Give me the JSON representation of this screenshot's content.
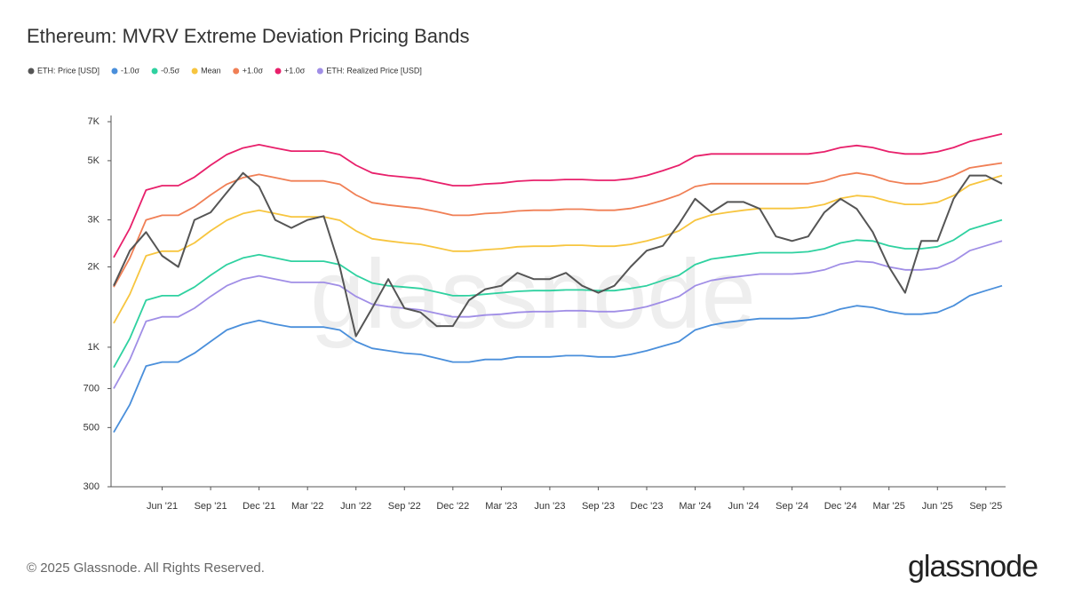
{
  "chart_data": {
    "type": "line",
    "title": "Ethereum: MVRV Extreme Deviation Pricing Bands",
    "watermark": "glassnode",
    "yscale": "log",
    "grid": false,
    "x": [
      "2021-03",
      "2021-04",
      "2021-05",
      "2021-06",
      "2021-07",
      "2021-08",
      "2021-09",
      "2021-10",
      "2021-11",
      "2021-12",
      "2022-01",
      "2022-02",
      "2022-03",
      "2022-04",
      "2022-05",
      "2022-06",
      "2022-07",
      "2022-08",
      "2022-09",
      "2022-10",
      "2022-11",
      "2022-12",
      "2023-01",
      "2023-02",
      "2023-03",
      "2023-04",
      "2023-05",
      "2023-06",
      "2023-07",
      "2023-08",
      "2023-09",
      "2023-10",
      "2023-11",
      "2023-12",
      "2024-01",
      "2024-02",
      "2024-03",
      "2024-04",
      "2024-05",
      "2024-06",
      "2024-07",
      "2024-08",
      "2024-09",
      "2024-10",
      "2024-11",
      "2024-12",
      "2025-01",
      "2025-02",
      "2025-03",
      "2025-04",
      "2025-05",
      "2025-06",
      "2025-07",
      "2025-08",
      "2025-09",
      "2025-10"
    ],
    "xticks": [
      {
        "value": "2021-06",
        "label": "Jun '21"
      },
      {
        "value": "2021-09",
        "label": "Sep '21"
      },
      {
        "value": "2021-12",
        "label": "Dec '21"
      },
      {
        "value": "2022-03",
        "label": "Mar '22"
      },
      {
        "value": "2022-06",
        "label": "Jun '22"
      },
      {
        "value": "2022-09",
        "label": "Sep '22"
      },
      {
        "value": "2022-12",
        "label": "Dec '22"
      },
      {
        "value": "2023-03",
        "label": "Mar '23"
      },
      {
        "value": "2023-06",
        "label": "Jun '23"
      },
      {
        "value": "2023-09",
        "label": "Sep '23"
      },
      {
        "value": "2023-12",
        "label": "Dec '23"
      },
      {
        "value": "2024-03",
        "label": "Mar '24"
      },
      {
        "value": "2024-06",
        "label": "Jun '24"
      },
      {
        "value": "2024-09",
        "label": "Sep '24"
      },
      {
        "value": "2024-12",
        "label": "Dec '24"
      },
      {
        "value": "2025-03",
        "label": "Mar '25"
      },
      {
        "value": "2025-06",
        "label": "Jun '25"
      },
      {
        "value": "2025-09",
        "label": "Sep '25"
      }
    ],
    "ylim": [
      300,
      7000
    ],
    "yticks": [
      300,
      500,
      700,
      {
        "value": 1000,
        "label": "1K"
      },
      {
        "value": 2000,
        "label": "2K"
      },
      {
        "value": 3000,
        "label": "3K"
      },
      {
        "value": 5000,
        "label": "5K"
      },
      {
        "value": 7000,
        "label": "7K"
      }
    ],
    "series": [
      {
        "name": "ETH: Price [USD]",
        "color": "#555555",
        "values": [
          1700,
          2300,
          2700,
          2200,
          2000,
          3000,
          3200,
          3800,
          4500,
          4000,
          3000,
          2800,
          3000,
          3100,
          2000,
          1100,
          1400,
          1800,
          1400,
          1350,
          1200,
          1200,
          1500,
          1650,
          1700,
          1900,
          1800,
          1800,
          1900,
          1700,
          1600,
          1700,
          2000,
          2300,
          2400,
          2900,
          3600,
          3200,
          3500,
          3500,
          3300,
          2600,
          2500,
          2600,
          3200,
          3600,
          3300,
          2700,
          2000,
          1600,
          2500,
          2500,
          3600,
          4400,
          4400,
          4100
        ]
      },
      {
        "name": "-1.0σ",
        "color": "#4a8fdb",
        "values": [
          480,
          610,
          850,
          880,
          880,
          950,
          1050,
          1160,
          1220,
          1260,
          1220,
          1190,
          1190,
          1190,
          1160,
          1050,
          990,
          970,
          950,
          940,
          910,
          880,
          880,
          900,
          900,
          920,
          920,
          920,
          930,
          930,
          920,
          920,
          940,
          970,
          1010,
          1050,
          1160,
          1210,
          1240,
          1260,
          1280,
          1280,
          1280,
          1290,
          1330,
          1390,
          1430,
          1410,
          1360,
          1330,
          1330,
          1350,
          1430,
          1560,
          1630,
          1700
        ]
      },
      {
        "name": "-0.5σ",
        "color": "#2fd1a0",
        "values": [
          840,
          1080,
          1500,
          1560,
          1560,
          1680,
          1860,
          2040,
          2160,
          2220,
          2160,
          2100,
          2100,
          2100,
          2040,
          1860,
          1740,
          1700,
          1680,
          1660,
          1610,
          1560,
          1560,
          1580,
          1600,
          1620,
          1630,
          1630,
          1640,
          1640,
          1630,
          1630,
          1660,
          1700,
          1780,
          1860,
          2040,
          2140,
          2180,
          2220,
          2260,
          2260,
          2260,
          2280,
          2340,
          2460,
          2520,
          2500,
          2400,
          2340,
          2340,
          2380,
          2520,
          2760,
          2880,
          3000
        ]
      },
      {
        "name": "Mean",
        "color": "#f7c53f",
        "values": [
          1230,
          1580,
          2200,
          2290,
          2290,
          2460,
          2730,
          2990,
          3170,
          3260,
          3170,
          3080,
          3080,
          3080,
          2990,
          2730,
          2550,
          2500,
          2460,
          2430,
          2360,
          2290,
          2290,
          2320,
          2340,
          2380,
          2390,
          2390,
          2410,
          2410,
          2390,
          2390,
          2430,
          2500,
          2600,
          2730,
          2990,
          3130,
          3200,
          3260,
          3310,
          3310,
          3310,
          3340,
          3430,
          3610,
          3700,
          3660,
          3520,
          3430,
          3430,
          3490,
          3700,
          4050,
          4220,
          4400
        ]
      },
      {
        "name": "+1.0σ",
        "color": "#f07f55",
        "values": [
          1680,
          2160,
          3000,
          3120,
          3120,
          3360,
          3720,
          4080,
          4320,
          4440,
          4320,
          4200,
          4200,
          4200,
          4080,
          3720,
          3480,
          3410,
          3360,
          3310,
          3220,
          3120,
          3120,
          3170,
          3190,
          3240,
          3260,
          3260,
          3290,
          3290,
          3260,
          3260,
          3310,
          3410,
          3550,
          3720,
          4000,
          4100,
          4100,
          4100,
          4100,
          4100,
          4100,
          4100,
          4200,
          4400,
          4500,
          4400,
          4200,
          4100,
          4100,
          4200,
          4400,
          4700,
          4800,
          4900
        ]
      },
      {
        "name": "+1.0σ",
        "color": "#e8206b",
        "values": [
          2170,
          2790,
          3880,
          4030,
          4030,
          4340,
          4810,
          5270,
          5580,
          5740,
          5580,
          5430,
          5430,
          5430,
          5270,
          4810,
          4500,
          4400,
          4340,
          4280,
          4150,
          4030,
          4030,
          4090,
          4120,
          4190,
          4220,
          4220,
          4250,
          4250,
          4220,
          4220,
          4280,
          4400,
          4590,
          4810,
          5200,
          5300,
          5300,
          5300,
          5300,
          5300,
          5300,
          5300,
          5400,
          5600,
          5700,
          5600,
          5400,
          5300,
          5300,
          5400,
          5600,
          5900,
          6100,
          6300
        ]
      },
      {
        "name": "ETH: Realized Price [USD]",
        "color": "#a08ee6",
        "values": [
          700,
          900,
          1250,
          1300,
          1300,
          1400,
          1550,
          1700,
          1800,
          1850,
          1800,
          1750,
          1750,
          1750,
          1700,
          1550,
          1450,
          1420,
          1400,
          1380,
          1340,
          1300,
          1300,
          1320,
          1330,
          1350,
          1360,
          1360,
          1370,
          1370,
          1360,
          1360,
          1380,
          1420,
          1480,
          1550,
          1700,
          1780,
          1820,
          1850,
          1880,
          1880,
          1880,
          1900,
          1950,
          2050,
          2100,
          2080,
          2000,
          1950,
          1950,
          1980,
          2100,
          2300,
          2400,
          2500
        ]
      }
    ]
  },
  "footer": {
    "copyright": "© 2025 Glassnode. All Rights Reserved.",
    "logo": "glassnode"
  }
}
